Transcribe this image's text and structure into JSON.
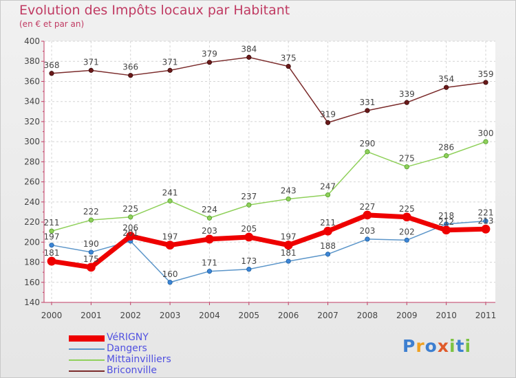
{
  "header": {
    "title": "Evolution des Impôts locaux par Habitant",
    "subtitle": "(en € et par an)"
  },
  "chart_data": {
    "type": "line",
    "title": "Evolution des Impôts locaux par Habitant",
    "subtitle": "(en € et par an)",
    "xlabel": "",
    "ylabel": "",
    "x": [
      "2000",
      "2001",
      "2002",
      "2003",
      "2004",
      "2005",
      "2006",
      "2007",
      "2008",
      "2009",
      "2010",
      "2011"
    ],
    "ylim": [
      140,
      400
    ],
    "yticks": [
      "140",
      "160",
      "180",
      "200",
      "220",
      "240",
      "260",
      "280",
      "300",
      "320",
      "340",
      "360",
      "380",
      "400"
    ],
    "grid": true,
    "legend_position": "bottom-left",
    "series": [
      {
        "name": "VéRIGNY",
        "color": "#ee0000",
        "values": [
          181,
          175,
          206,
          197,
          203,
          205,
          197,
          211,
          227,
          225,
          212,
          213
        ],
        "labels": [
          "181",
          "175",
          "206",
          "197",
          "203",
          "205",
          "197",
          "211",
          "227",
          "225",
          "212",
          "213"
        ]
      },
      {
        "name": "Dangers",
        "color": "#5b95c9",
        "values": [
          197,
          190,
          201,
          160,
          171,
          173,
          181,
          188,
          203,
          202,
          218,
          221
        ],
        "labels": [
          "197",
          "190",
          "201",
          "160",
          "171",
          "173",
          "181",
          "188",
          "203",
          "202",
          "218",
          "221"
        ]
      },
      {
        "name": "Mittainvilliers",
        "color": "#8fd05a",
        "values": [
          211,
          222,
          225,
          241,
          224,
          237,
          243,
          247,
          290,
          275,
          286,
          300
        ],
        "labels": [
          "211",
          "222",
          "225",
          "241",
          "224",
          "237",
          "243",
          "247",
          "290",
          "275",
          "286",
          "300"
        ]
      },
      {
        "name": "Briconville",
        "color": "#7a2a2a",
        "values": [
          368,
          371,
          366,
          371,
          379,
          384,
          375,
          319,
          331,
          339,
          354,
          359
        ],
        "labels": [
          "368",
          "371",
          "366",
          "371",
          "379",
          "384",
          "375",
          "319",
          "331",
          "339",
          "354",
          "359"
        ]
      }
    ]
  },
  "legend": {
    "items": [
      {
        "label": "VéRIGNY",
        "color": "#ee0000"
      },
      {
        "label": "Dangers",
        "color": "#5b95c9"
      },
      {
        "label": "Mittainvilliers",
        "color": "#8fd05a"
      },
      {
        "label": "Briconville",
        "color": "#7a2a2a"
      }
    ]
  },
  "logo": {
    "letters": [
      "P",
      "r",
      "o",
      "x",
      "i",
      "t",
      "i"
    ],
    "colors": [
      "#3d7fd0",
      "#f0a020",
      "#3d7fd0",
      "#e05a2a",
      "#7cc242",
      "#3d7fd0",
      "#7cc242"
    ]
  }
}
